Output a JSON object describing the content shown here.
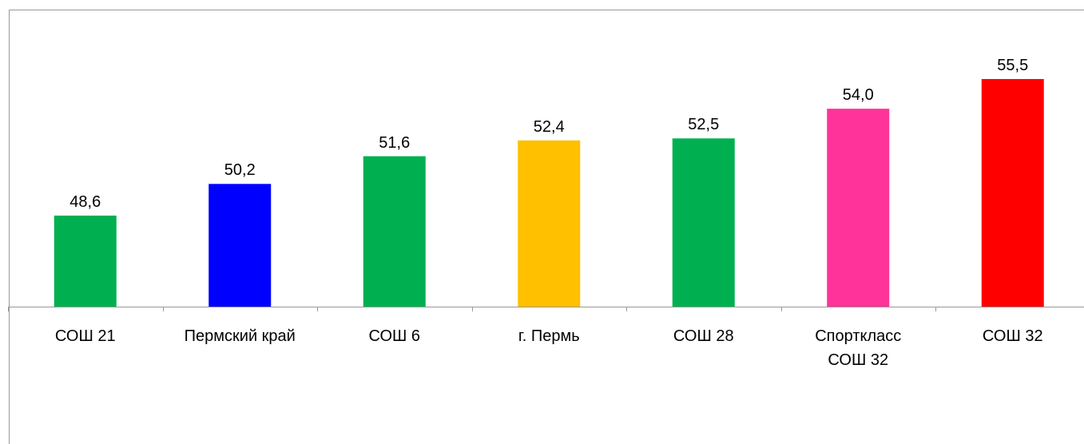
{
  "chart_data": {
    "type": "bar",
    "categories": [
      "СОШ 21",
      "Пермский край",
      "СОШ 6",
      "г. Пермь",
      "СОШ 28",
      "Спорткласс\nСОШ 32",
      "СОШ 32"
    ],
    "values": [
      48.6,
      50.2,
      51.6,
      52.4,
      52.5,
      54.0,
      55.5
    ],
    "value_labels": [
      "48,6",
      "50,2",
      "51,6",
      "52,4",
      "52,5",
      "54,0",
      "55,5"
    ],
    "colors": [
      "#00b050",
      "#0000ff",
      "#00b050",
      "#ffc000",
      "#00b050",
      "#ff3399",
      "#ff0000"
    ],
    "ylim": [
      44,
      58
    ]
  }
}
